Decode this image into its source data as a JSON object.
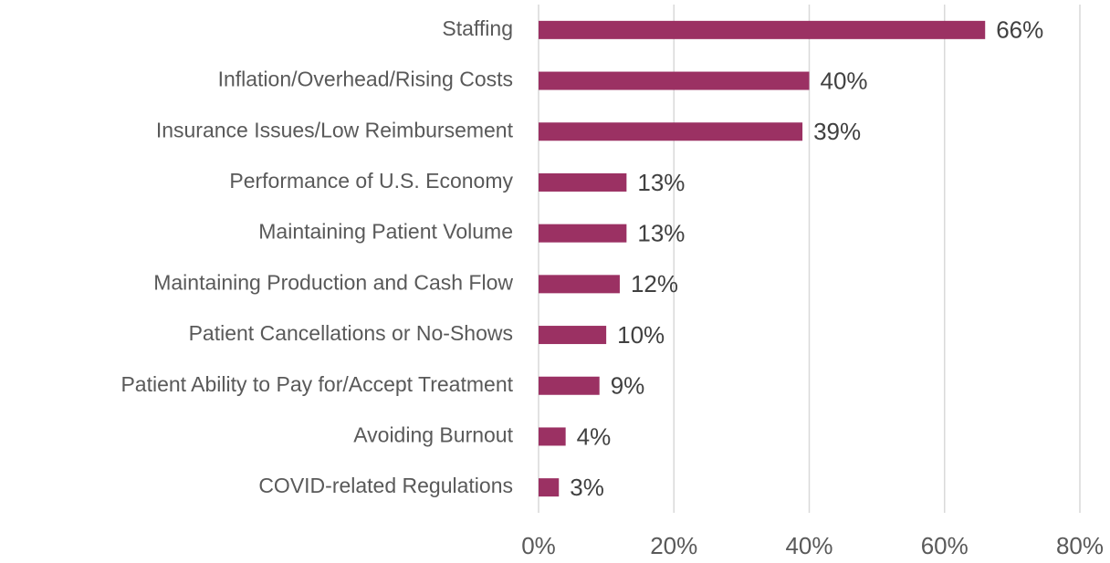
{
  "chart_data": {
    "type": "barh",
    "categories": [
      "Staffing",
      "Inflation/Overhead/Rising Costs",
      "Insurance Issues/Low Reimbursement",
      "Performance of U.S. Economy",
      "Maintaining Patient Volume",
      "Maintaining Production and Cash Flow",
      "Patient Cancellations or No-Shows",
      "Patient Ability to Pay for/Accept Treatment",
      "Avoiding Burnout",
      "COVID-related Regulations"
    ],
    "values": [
      66,
      40,
      39,
      13,
      13,
      12,
      10,
      9,
      4,
      3
    ],
    "value_labels": [
      "66%",
      "40%",
      "39%",
      "13%",
      "13%",
      "12%",
      "10%",
      "9%",
      "4%",
      "3%"
    ],
    "color": "#9b3163",
    "xlim": [
      0,
      80
    ],
    "xticks": [
      {
        "value": 0,
        "label": "0%"
      },
      {
        "value": 20,
        "label": "20%"
      },
      {
        "value": 40,
        "label": "40%"
      },
      {
        "value": 60,
        "label": "60%"
      },
      {
        "value": 80,
        "label": "80%"
      }
    ],
    "grid": true
  }
}
